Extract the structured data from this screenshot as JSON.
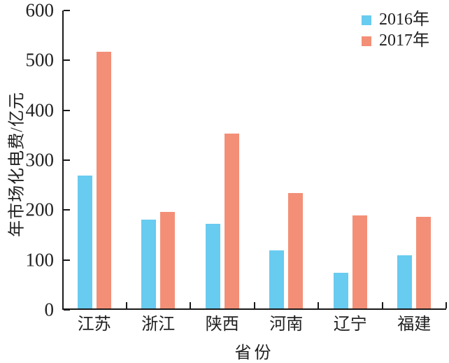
{
  "chart_data": {
    "type": "bar",
    "title": "",
    "categories": [
      "江苏",
      "浙江",
      "陕西",
      "河南",
      "辽宁",
      "福建"
    ],
    "series": [
      {
        "name": "2016年",
        "color": "#68cbf0",
        "values": [
          266,
          178,
          170,
          117,
          71,
          107
        ]
      },
      {
        "name": "2017年",
        "color": "#f38f77",
        "values": [
          515,
          193,
          350,
          232,
          187,
          183
        ]
      }
    ],
    "xlabel": "省份",
    "ylabel": "年市场化电费/亿元",
    "ylim": [
      0,
      600
    ],
    "yticks": [
      0,
      100,
      200,
      300,
      400,
      500,
      600
    ],
    "grid": false,
    "legend_position": "top-right"
  },
  "colors": {
    "axis": "#1a1a1a",
    "text": "#212121",
    "background": "#ffffff"
  }
}
